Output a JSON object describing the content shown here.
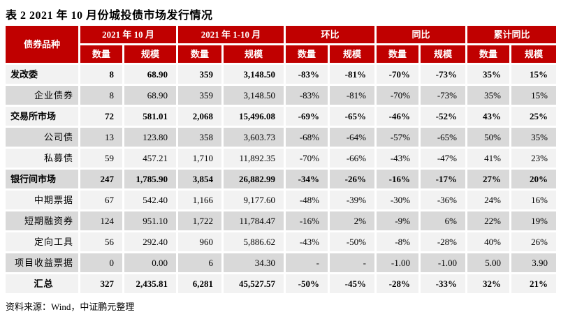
{
  "title": "表 2   2021 年 10 月份城投债市场发行情况",
  "source": "资料来源：Wind，中证鹏元整理",
  "colors": {
    "header_red": "#C00000",
    "row_light": "#F2F2F2",
    "row_dark": "#D9D9D9",
    "header_text": "#FFFFFF"
  },
  "table": {
    "corner_header": "债券品种",
    "groups": [
      "2021 年 10 月",
      "2021 年 1-10 月",
      "环比",
      "同比",
      "累计同比"
    ],
    "subheaders": [
      "数量",
      "规模"
    ],
    "rows": [
      {
        "label": "发改委",
        "bold": true,
        "shade": "light",
        "align": "left",
        "values": [
          "8",
          "68.90",
          "359",
          "3,148.50",
          "-83%",
          "-81%",
          "-70%",
          "-73%",
          "35%",
          "15%"
        ]
      },
      {
        "label": "企业债券",
        "bold": false,
        "shade": "dark",
        "align": "right",
        "values": [
          "8",
          "68.90",
          "359",
          "3,148.50",
          "-83%",
          "-81%",
          "-70%",
          "-73%",
          "35%",
          "15%"
        ]
      },
      {
        "label": "交易所市场",
        "bold": true,
        "shade": "light",
        "align": "left",
        "values": [
          "72",
          "581.01",
          "2,068",
          "15,496.08",
          "-69%",
          "-65%",
          "-46%",
          "-52%",
          "43%",
          "25%"
        ]
      },
      {
        "label": "公司债",
        "bold": false,
        "shade": "dark",
        "align": "right",
        "values": [
          "13",
          "123.80",
          "358",
          "3,603.73",
          "-68%",
          "-64%",
          "-57%",
          "-65%",
          "50%",
          "35%"
        ]
      },
      {
        "label": "私募债",
        "bold": false,
        "shade": "light",
        "align": "right",
        "values": [
          "59",
          "457.21",
          "1,710",
          "11,892.35",
          "-70%",
          "-66%",
          "-43%",
          "-47%",
          "41%",
          "23%"
        ]
      },
      {
        "label": "银行间市场",
        "bold": true,
        "shade": "dark",
        "align": "left",
        "values": [
          "247",
          "1,785.90",
          "3,854",
          "26,882.99",
          "-34%",
          "-26%",
          "-16%",
          "-17%",
          "27%",
          "20%"
        ]
      },
      {
        "label": "中期票据",
        "bold": false,
        "shade": "light",
        "align": "right",
        "values": [
          "67",
          "542.40",
          "1,166",
          "9,177.60",
          "-48%",
          "-39%",
          "-30%",
          "-36%",
          "24%",
          "16%"
        ]
      },
      {
        "label": "短期融资券",
        "bold": false,
        "shade": "dark",
        "align": "right",
        "values": [
          "124",
          "951.10",
          "1,722",
          "11,784.47",
          "-16%",
          "2%",
          "-9%",
          "6%",
          "22%",
          "19%"
        ]
      },
      {
        "label": "定向工具",
        "bold": false,
        "shade": "light",
        "align": "right",
        "values": [
          "56",
          "292.40",
          "960",
          "5,886.62",
          "-43%",
          "-50%",
          "-8%",
          "-28%",
          "40%",
          "26%"
        ]
      },
      {
        "label": "项目收益票据",
        "bold": false,
        "shade": "dark",
        "align": "right",
        "values": [
          "0",
          "0.00",
          "6",
          "34.30",
          "-",
          "-",
          "-1.00",
          "-1.00",
          "5.00",
          "3.90"
        ]
      },
      {
        "label": "汇总",
        "bold": true,
        "shade": "light",
        "align": "center",
        "values": [
          "327",
          "2,435.81",
          "6,281",
          "45,527.57",
          "-50%",
          "-45%",
          "-28%",
          "-33%",
          "32%",
          "21%"
        ]
      }
    ]
  }
}
